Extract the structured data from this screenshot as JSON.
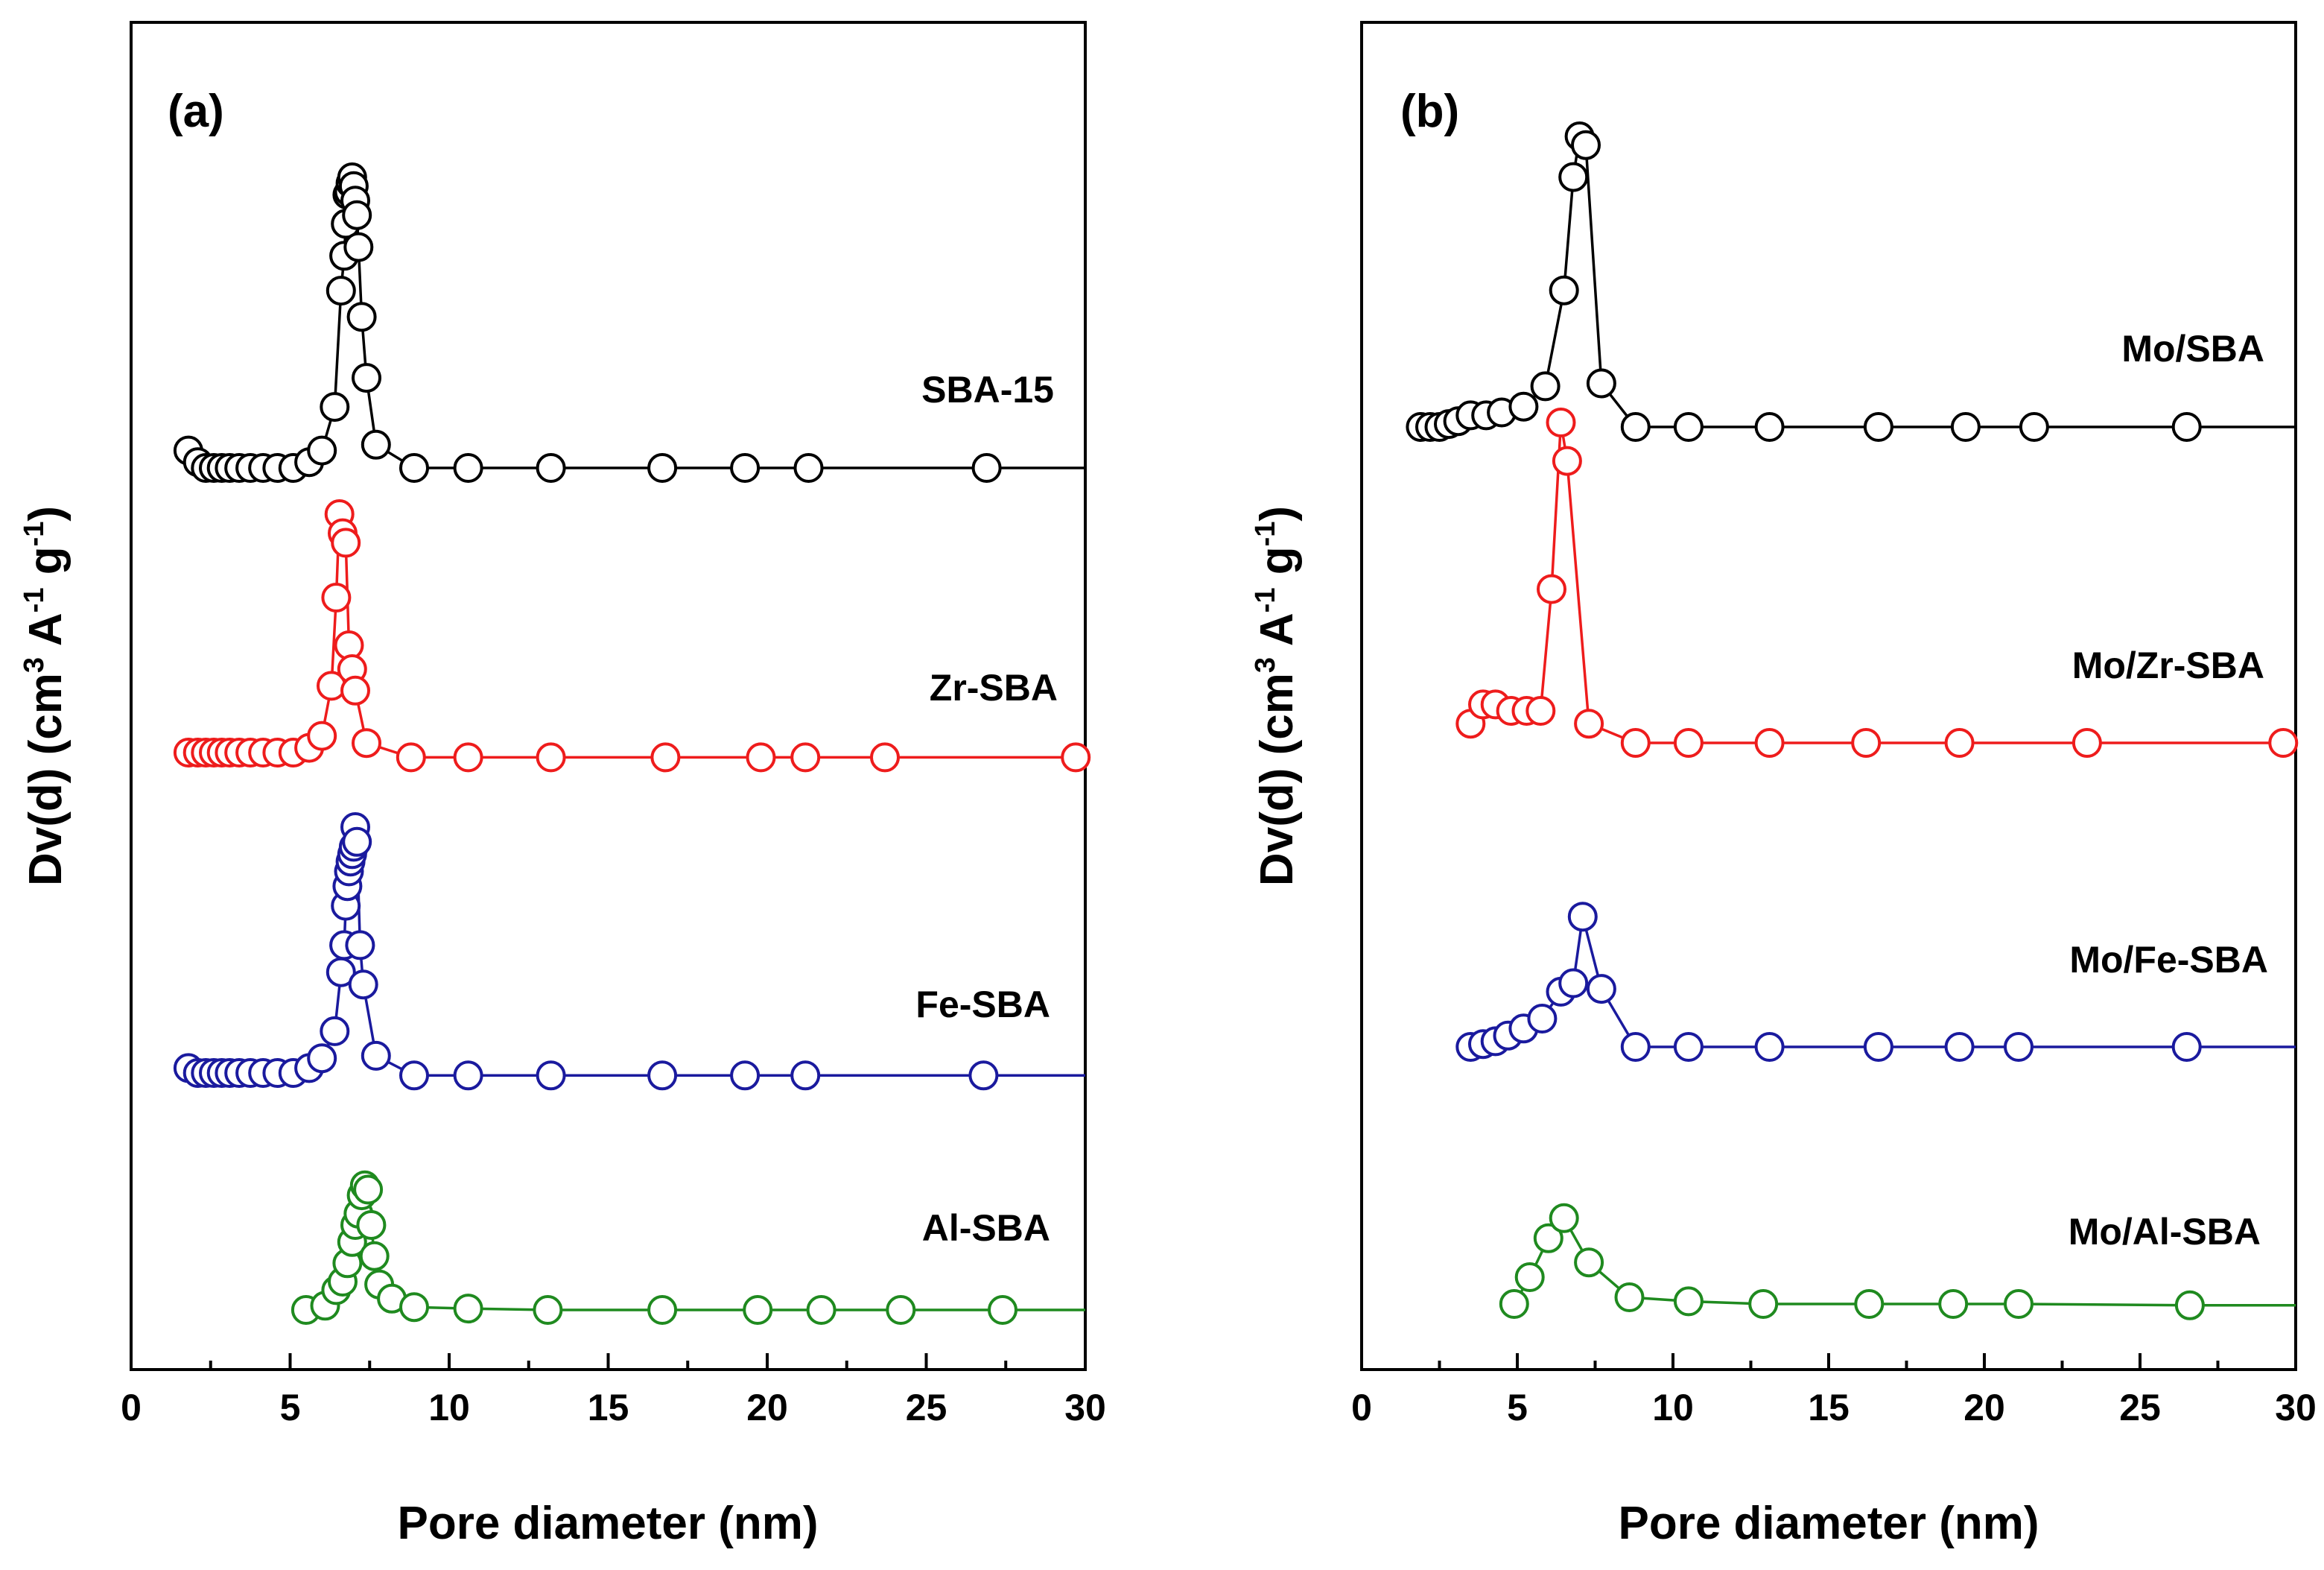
{
  "chart_data": [
    {
      "type": "line",
      "panel_label": "(a)",
      "xlabel": "Pore diameter (nm)",
      "ylabel": "Dv(d) (cm3 A-1 g-1)",
      "ylabel_parts": [
        "Dv(d) (cm",
        "3",
        " A",
        "-1",
        " g",
        "-1",
        ")"
      ],
      "xlim": [
        0,
        30
      ],
      "x_ticks": [
        0,
        5,
        10,
        15,
        20,
        25,
        30
      ],
      "y_ticks_labeled": false,
      "y_units": "arbitrary (curves vertically offset)",
      "series": [
        {
          "name": "SBA-15",
          "color": "#000000",
          "x": [
            1.8,
            2.1,
            2.35,
            2.6,
            2.85,
            3.1,
            3.4,
            3.75,
            4.15,
            4.6,
            5.1,
            5.6,
            6.0,
            6.4,
            6.6,
            6.7,
            6.75,
            6.8,
            6.85,
            6.9,
            6.95,
            7.0,
            7.05,
            7.1,
            7.15,
            7.25,
            7.4,
            7.7,
            8.9,
            10.6,
            13.2,
            16.7,
            19.3,
            21.3,
            26.9
          ],
          "y": [
            0.06,
            0.02,
            0.0,
            0.0,
            0.0,
            0.0,
            0.0,
            0.0,
            0.0,
            0.0,
            0.0,
            0.02,
            0.06,
            0.21,
            0.61,
            0.73,
            0.84,
            0.94,
            0.95,
            0.98,
            1.0,
            0.97,
            0.92,
            0.87,
            0.76,
            0.52,
            0.31,
            0.08,
            0.0,
            0.0,
            0.0,
            0.0,
            0.0,
            0.0,
            0.0
          ]
        },
        {
          "name": "Zr-SBA",
          "color": "#ee1c1c",
          "x": [
            1.8,
            2.1,
            2.35,
            2.6,
            2.85,
            3.1,
            3.4,
            3.75,
            4.15,
            4.6,
            5.1,
            5.6,
            6.0,
            6.3,
            6.45,
            6.55,
            6.65,
            6.75,
            6.85,
            6.95,
            7.05,
            7.4,
            8.8,
            10.6,
            13.2,
            16.8,
            19.8,
            21.2,
            23.7,
            29.7
          ],
          "y": [
            0.0,
            0.0,
            0.0,
            0.0,
            0.0,
            0.0,
            0.0,
            0.0,
            0.0,
            0.0,
            0.0,
            0.02,
            0.07,
            0.28,
            0.65,
            1.0,
            0.92,
            0.88,
            0.45,
            0.35,
            0.26,
            0.04,
            -0.02,
            -0.02,
            -0.02,
            -0.02,
            -0.02,
            -0.02,
            -0.02,
            -0.02
          ]
        },
        {
          "name": "Fe-SBA",
          "color": "#1a1a9e",
          "x": [
            1.8,
            2.1,
            2.35,
            2.6,
            2.85,
            3.1,
            3.4,
            3.75,
            4.15,
            4.6,
            5.1,
            5.6,
            6.0,
            6.4,
            6.6,
            6.7,
            6.75,
            6.8,
            6.85,
            6.9,
            6.95,
            7.0,
            7.05,
            7.1,
            7.2,
            7.3,
            7.7,
            8.9,
            10.6,
            13.2,
            16.7,
            19.3,
            21.2,
            26.8
          ],
          "y": [
            0.02,
            0.0,
            0.0,
            0.0,
            0.0,
            0.0,
            0.0,
            0.0,
            0.0,
            0.0,
            0.0,
            0.02,
            0.06,
            0.17,
            0.41,
            0.52,
            0.68,
            0.76,
            0.82,
            0.86,
            0.89,
            0.92,
            1.0,
            0.94,
            0.52,
            0.36,
            0.07,
            -0.01,
            -0.01,
            -0.01,
            -0.01,
            -0.01,
            -0.01,
            -0.01
          ]
        },
        {
          "name": "Al-SBA",
          "color": "#1f8a1f",
          "x": [
            5.5,
            6.1,
            6.45,
            6.65,
            6.8,
            6.95,
            7.05,
            7.15,
            7.25,
            7.35,
            7.45,
            7.55,
            7.65,
            7.8,
            8.2,
            8.9,
            10.6,
            13.1,
            16.7,
            19.7,
            21.7,
            24.2,
            27.4
          ],
          "y": [
            0.0,
            0.03,
            0.14,
            0.2,
            0.33,
            0.48,
            0.6,
            0.68,
            0.81,
            0.88,
            0.85,
            0.6,
            0.38,
            0.18,
            0.08,
            0.02,
            0.01,
            0.0,
            0.0,
            0.0,
            0.0,
            0.0,
            0.0
          ]
        }
      ]
    },
    {
      "type": "line",
      "panel_label": "(b)",
      "xlabel": "Pore diameter (nm)",
      "ylabel": "Dv(d) (cm3 A-1 g-1)",
      "ylabel_parts": [
        "Dv(d) (cm",
        "3",
        " A",
        "-1",
        " g",
        "-1",
        ")"
      ],
      "xlim": [
        0,
        30
      ],
      "x_ticks": [
        0,
        5,
        10,
        15,
        20,
        25,
        30
      ],
      "y_ticks_labeled": false,
      "y_units": "arbitrary (curves vertically offset)",
      "series": [
        {
          "name": "Mo/SBA",
          "color": "#000000",
          "x": [
            1.9,
            2.2,
            2.5,
            2.8,
            3.1,
            3.5,
            4.0,
            4.5,
            5.2,
            5.9,
            6.5,
            6.8,
            7.0,
            7.2,
            7.7,
            8.8,
            10.5,
            13.1,
            16.6,
            19.4,
            21.6,
            26.5
          ],
          "y": [
            0.0,
            0.0,
            0.0,
            0.01,
            0.02,
            0.04,
            0.04,
            0.05,
            0.07,
            0.14,
            0.47,
            0.86,
            1.0,
            0.97,
            0.15,
            0.0,
            0.0,
            0.0,
            0.0,
            0.0,
            0.0,
            0.0
          ]
        },
        {
          "name": "Mo/Zr-SBA",
          "color": "#ee1c1c",
          "x": [
            3.5,
            3.9,
            4.3,
            4.8,
            5.3,
            5.75,
            6.1,
            6.4,
            6.6,
            7.3,
            8.8,
            10.5,
            13.1,
            16.2,
            19.2,
            23.3,
            29.6
          ],
          "y": [
            0.06,
            0.12,
            0.12,
            0.1,
            0.1,
            0.1,
            0.48,
            1.0,
            0.88,
            0.06,
            0.0,
            0.0,
            0.0,
            0.0,
            0.0,
            0.0,
            0.0
          ]
        },
        {
          "name": "Mo/Fe-SBA",
          "color": "#1a1a9e",
          "x": [
            3.5,
            3.9,
            4.3,
            4.7,
            5.2,
            5.8,
            6.4,
            6.8,
            7.1,
            7.7,
            8.8,
            10.5,
            13.1,
            16.6,
            19.2,
            21.1,
            26.5
          ],
          "y": [
            0.0,
            0.02,
            0.04,
            0.08,
            0.13,
            0.2,
            0.39,
            0.45,
            0.92,
            0.41,
            0.0,
            0.0,
            0.0,
            0.0,
            0.0,
            0.0,
            0.0
          ]
        },
        {
          "name": "Mo/Al-SBA",
          "color": "#1f8a1f",
          "x": [
            4.9,
            5.4,
            6.0,
            6.5,
            7.3,
            8.6,
            10.5,
            12.9,
            16.3,
            19.0,
            21.1,
            26.6
          ],
          "y": [
            0.0,
            0.2,
            0.49,
            0.64,
            0.31,
            0.05,
            0.02,
            0.0,
            0.0,
            0.0,
            0.0,
            -0.01
          ]
        }
      ]
    }
  ]
}
